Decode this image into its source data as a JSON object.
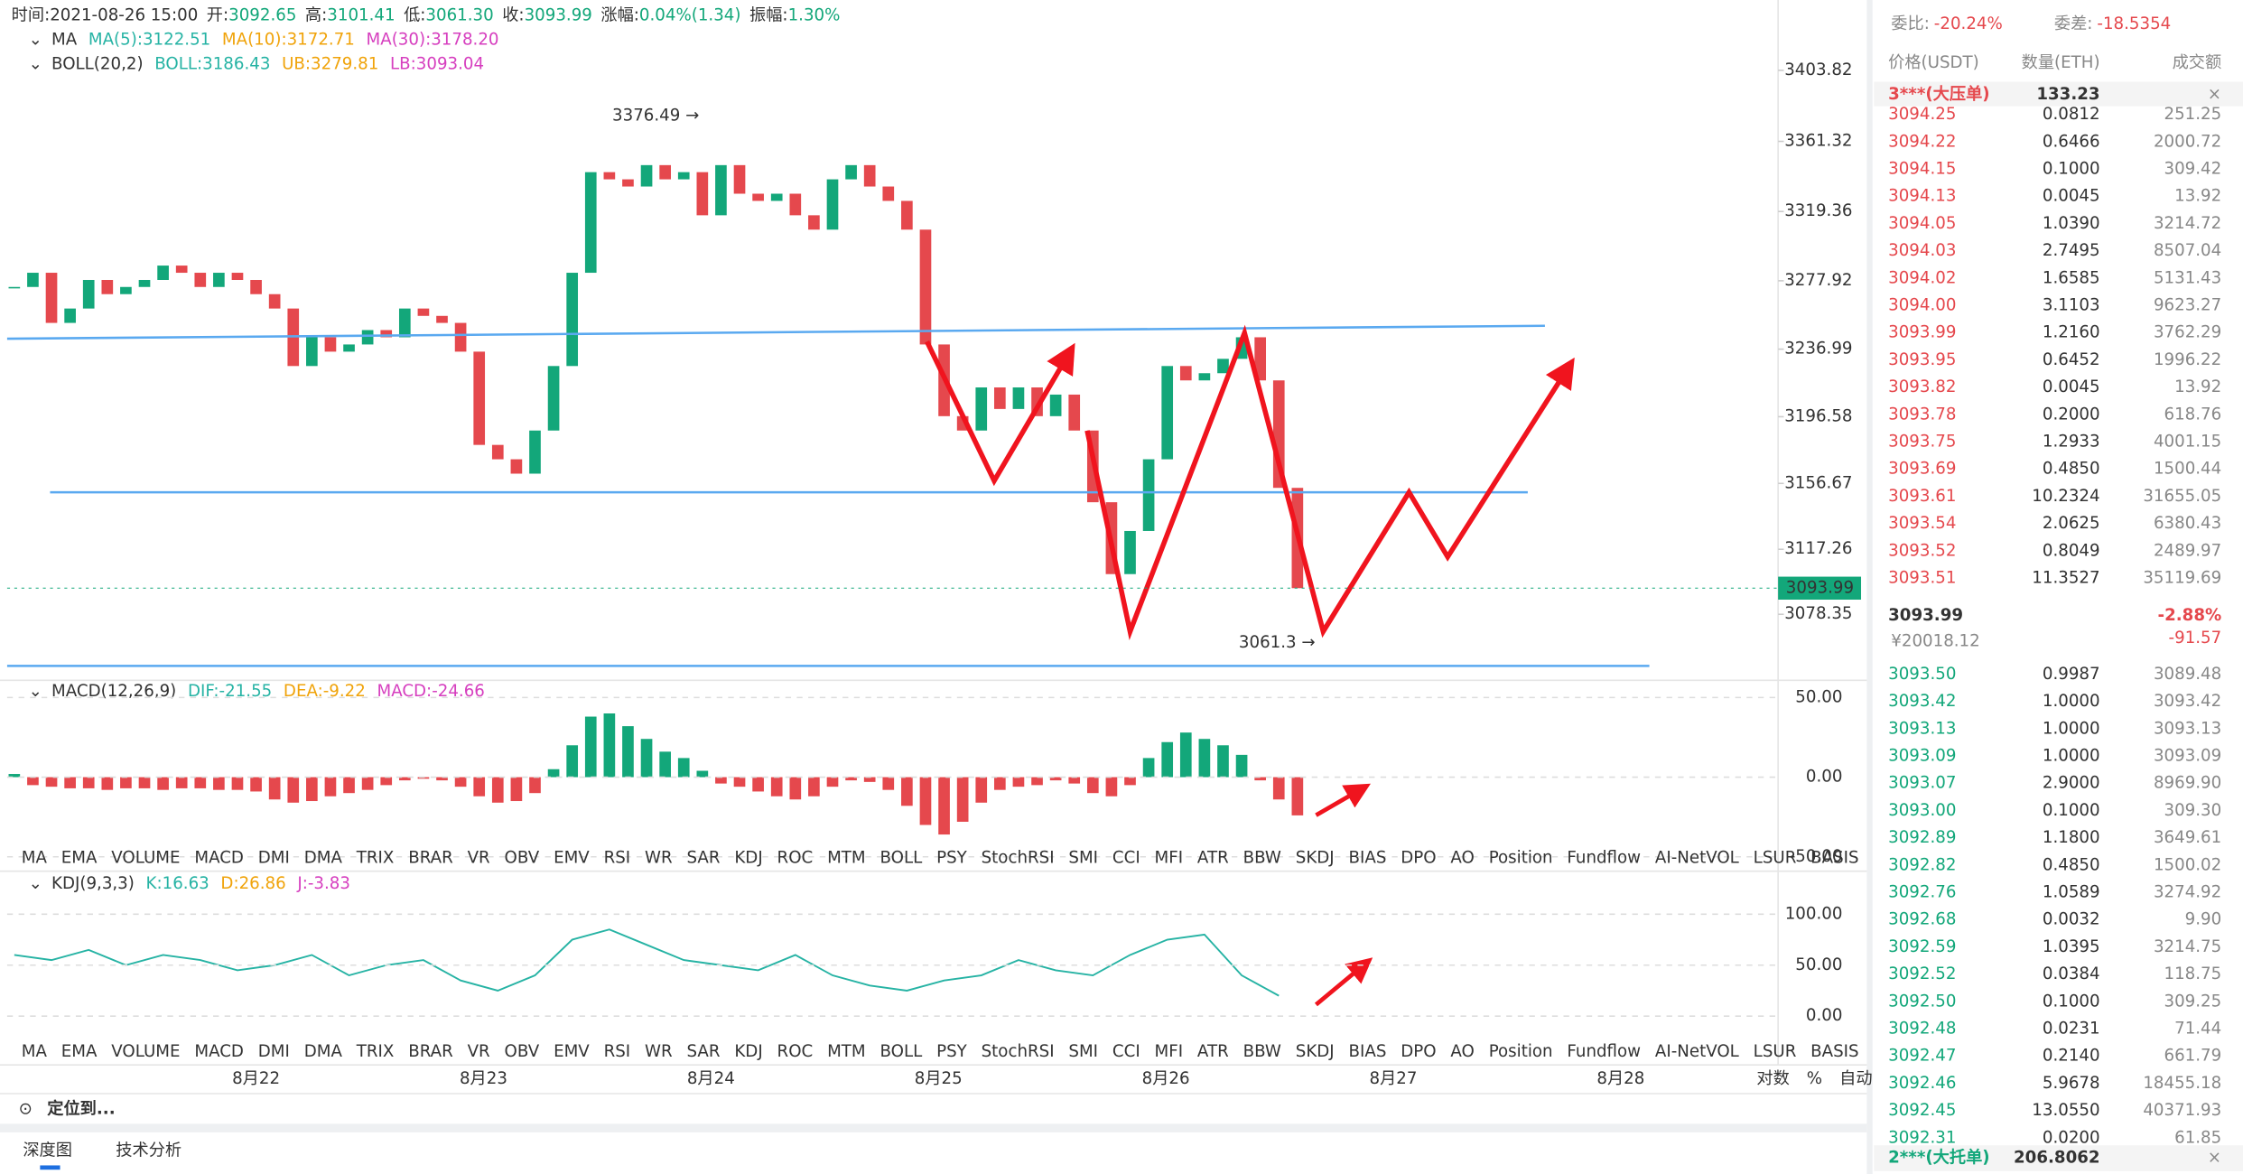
{
  "header": {
    "fields": [
      {
        "label": "时间:",
        "value": "2021-08-26 15:00"
      },
      {
        "label": "开:",
        "value": "3092.65"
      },
      {
        "label": "高:",
        "value": "3101.41"
      },
      {
        "label": "低:",
        "value": "3061.30"
      },
      {
        "label": "收:",
        "value": "3093.99"
      },
      {
        "label": "涨幅:",
        "value": "0.04%(1.34)"
      },
      {
        "label": "振幅:",
        "value": "1.30%"
      }
    ],
    "ma_title": "MA",
    "ma_items": [
      {
        "text": "MA(5):3122.51",
        "color": "#26b3a4"
      },
      {
        "text": "MA(10):3172.71",
        "color": "#f0a30a"
      },
      {
        "text": "MA(30):3178.20",
        "color": "#d63fbf"
      }
    ],
    "boll_title": "BOLL(20,2)",
    "boll_items": [
      {
        "text": "BOLL:3186.43",
        "color": "#26b3a4"
      },
      {
        "text": "UB:3279.81",
        "color": "#f0a30a"
      },
      {
        "text": "LB:3093.04",
        "color": "#d63fbf"
      }
    ]
  },
  "price_chart": {
    "ylim": [
      3042.3,
      3445.9
    ],
    "yticks": [
      3403.82,
      3361.32,
      3319.36,
      3277.92,
      3236.99,
      3196.58,
      3156.67,
      3117.26,
      3078.35
    ],
    "closes": [
      3274.2,
      3282.7,
      3252.7,
      3261.3,
      3278.4,
      3269.9,
      3274.2,
      3278.4,
      3287.0,
      3282.7,
      3274.2,
      3282.7,
      3278.4,
      3269.9,
      3261.3,
      3226.9,
      3244.1,
      3235.5,
      3239.8,
      3248.4,
      3244.1,
      3261.3,
      3256.9,
      3252.7,
      3235.5,
      3179.7,
      3171.1,
      3162.5,
      3188.3,
      3226.9,
      3282.7,
      3342.9,
      3338.6,
      3334.3,
      3347.1,
      3338.6,
      3342.9,
      3317.1,
      3347.1,
      3330.0,
      3325.7,
      3330.0,
      3317.1,
      3308.5,
      3338.6,
      3347.1,
      3334.3,
      3325.7,
      3308.5,
      3239.8,
      3196.9,
      3188.3,
      3214.1,
      3201.2,
      3214.1,
      3196.9,
      3209.8,
      3188.3,
      3145.4,
      3102.4,
      3128.2,
      3171.1,
      3226.9,
      3218.3,
      3222.6,
      3231.2,
      3244.1,
      3218.3,
      3154.0,
      3093.99
    ],
    "up_color": "#13a77a",
    "down_color": "#e5484d",
    "high_marker": {
      "value": 3376.49,
      "label": "3376.49 →"
    },
    "low_marker": {
      "value": 3061.3,
      "label": "3061.3 →"
    },
    "last_price": {
      "value": 3093.99,
      "label": "3093.99"
    },
    "dates": [
      "8月22",
      "8月23",
      "8月24",
      "8月25",
      "8月26",
      "8月27",
      "8月28"
    ]
  },
  "macd": {
    "title": "MACD(12,26,9)",
    "items": [
      {
        "text": "DIF:-21.55",
        "color": "#26b3a4"
      },
      {
        "text": "DEA:-9.22",
        "color": "#f0a30a"
      },
      {
        "text": "MACD:-24.66",
        "color": "#d63fbf"
      }
    ],
    "ylim": [
      -43.7,
      57.2
    ],
    "yticks": [
      {
        "value": 50,
        "label": "50.00"
      },
      {
        "value": 0,
        "label": "0.00"
      },
      {
        "value": -50,
        "label": "-50.00"
      }
    ],
    "histogram": [
      2,
      -5,
      -6,
      -7,
      -7,
      -8,
      -7,
      -7,
      -8,
      -7,
      -7,
      -8,
      -8,
      -9,
      -14,
      -16,
      -15,
      -12,
      -10,
      -8,
      -5,
      -2,
      -1,
      -2,
      -6,
      -12,
      -16,
      -15,
      -10,
      5,
      20,
      38,
      40,
      32,
      24,
      16,
      12,
      4,
      -4,
      -6,
      -9,
      -12,
      -14,
      -12,
      -6,
      -2,
      -3,
      -8,
      -18,
      -30,
      -36,
      -28,
      -16,
      -8,
      -6,
      -5,
      -2,
      -4,
      -10,
      -12,
      -5,
      12,
      22,
      28,
      24,
      20,
      14,
      -2,
      -14,
      -24
    ]
  },
  "kdj": {
    "title": "KDJ(9,3,3)",
    "items": [
      {
        "text": "K:16.63",
        "color": "#26b3a4"
      },
      {
        "text": "D:26.86",
        "color": "#f0a30a"
      },
      {
        "text": "J:-3.83",
        "color": "#d63fbf"
      }
    ],
    "ylim": [
      -16.9,
      138
    ],
    "yticks": [
      {
        "value": 100,
        "label": "100.00"
      },
      {
        "value": 50,
        "label": "50.00"
      },
      {
        "value": 0,
        "label": "0.00"
      }
    ],
    "k": [
      60,
      55,
      65,
      50,
      60,
      55,
      45,
      50,
      60,
      40,
      50,
      55,
      35,
      25,
      40,
      75,
      85,
      70,
      55,
      50,
      45,
      60,
      40,
      30,
      25,
      35,
      40,
      55,
      45,
      40,
      60,
      75,
      80,
      40,
      20
    ]
  },
  "indicator_tabs": [
    "MA",
    "EMA",
    "VOLUME",
    "MACD",
    "DMI",
    "DMA",
    "TRIX",
    "BRAR",
    "VR",
    "OBV",
    "EMV",
    "RSI",
    "WR",
    "SAR",
    "KDJ",
    "ROC",
    "MTM",
    "BOLL",
    "PSY",
    "StochRSI",
    "SMI",
    "CCI",
    "MFI",
    "ATR",
    "BBW",
    "SKDJ",
    "BIAS",
    "DPO",
    "AO",
    "Position",
    "Fundflow",
    "AI-NetVOL",
    "LSUR",
    "BASIS"
  ],
  "axis_options": [
    "对数",
    "%",
    "自动"
  ],
  "locate": "定位到...",
  "bottom_tabs": [
    "深度图",
    "技术分析"
  ],
  "order_book": {
    "ratio_label": "委比:",
    "ratio": "-20.24%",
    "diff_label": "委差:",
    "diff": "-18.5354",
    "columns": [
      "价格(USDT)",
      "数量(ETH)",
      "成交额"
    ],
    "big_ask": [
      "3***(大压单)",
      "133.23"
    ],
    "asks": [
      [
        "3094.25",
        "0.0812",
        "251.25"
      ],
      [
        "3094.22",
        "0.6466",
        "2000.72"
      ],
      [
        "3094.15",
        "0.1000",
        "309.42"
      ],
      [
        "3094.13",
        "0.0045",
        "13.92"
      ],
      [
        "3094.05",
        "1.0390",
        "3214.72"
      ],
      [
        "3094.03",
        "2.7495",
        "8507.04"
      ],
      [
        "3094.02",
        "1.6585",
        "5131.43"
      ],
      [
        "3094.00",
        "3.1103",
        "9623.27"
      ],
      [
        "3093.99",
        "1.2160",
        "3762.29"
      ],
      [
        "3093.95",
        "0.6452",
        "1996.22"
      ],
      [
        "3093.82",
        "0.0045",
        "13.92"
      ],
      [
        "3093.78",
        "0.2000",
        "618.76"
      ],
      [
        "3093.75",
        "1.2933",
        "4001.15"
      ],
      [
        "3093.69",
        "0.4850",
        "1500.44"
      ],
      [
        "3093.61",
        "10.2324",
        "31655.05"
      ],
      [
        "3093.54",
        "2.0625",
        "6380.43"
      ],
      [
        "3093.52",
        "0.8049",
        "2489.97"
      ],
      [
        "3093.51",
        "11.3527",
        "35119.69"
      ]
    ],
    "last": "3093.99",
    "change_pct": "-2.88%",
    "cny": "¥20018.12",
    "change": "-91.57",
    "bids": [
      [
        "3093.50",
        "0.9987",
        "3089.48"
      ],
      [
        "3093.42",
        "1.0000",
        "3093.42"
      ],
      [
        "3093.13",
        "1.0000",
        "3093.13"
      ],
      [
        "3093.09",
        "1.0000",
        "3093.09"
      ],
      [
        "3093.07",
        "2.9000",
        "8969.90"
      ],
      [
        "3093.00",
        "0.1000",
        "309.30"
      ],
      [
        "3092.89",
        "1.1800",
        "3649.61"
      ],
      [
        "3092.82",
        "0.4850",
        "1500.02"
      ],
      [
        "3092.76",
        "1.0589",
        "3274.92"
      ],
      [
        "3092.68",
        "0.0032",
        "9.90"
      ],
      [
        "3092.59",
        "1.0395",
        "3214.75"
      ],
      [
        "3092.52",
        "0.0384",
        "118.75"
      ],
      [
        "3092.50",
        "0.1000",
        "309.25"
      ],
      [
        "3092.48",
        "0.0231",
        "71.44"
      ],
      [
        "3092.47",
        "0.2140",
        "661.79"
      ],
      [
        "3092.46",
        "5.9678",
        "18455.18"
      ],
      [
        "3092.45",
        "13.0550",
        "40371.93"
      ],
      [
        "3092.31",
        "0.0200",
        "61.85"
      ]
    ],
    "big_bid": [
      "2***(大托单)",
      "206.8062"
    ]
  }
}
